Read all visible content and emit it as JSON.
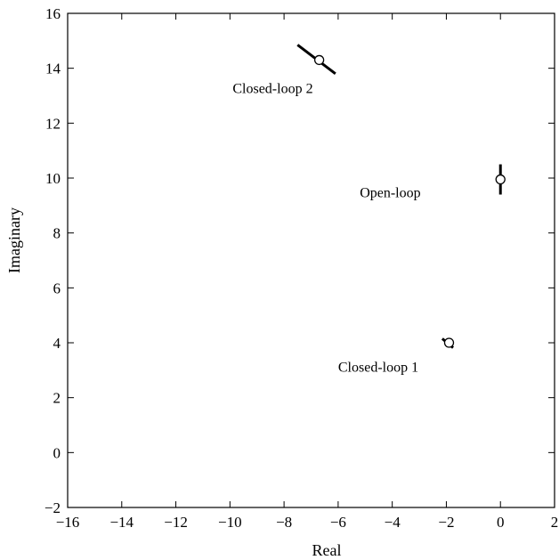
{
  "chart_data": {
    "type": "scatter",
    "title": "",
    "xlabel": "Real",
    "ylabel": "Imaginary",
    "xlim": [
      -16,
      2
    ],
    "ylim": [
      -2,
      16
    ],
    "xticks": [
      -16,
      -14,
      -12,
      -10,
      -8,
      -6,
      -4,
      -2,
      0,
      2
    ],
    "xtick_labels": [
      "−16",
      "−14",
      "−12",
      "−10",
      "−8",
      "−6",
      "−4",
      "−2",
      "0",
      "2"
    ],
    "yticks": [
      -2,
      0,
      2,
      4,
      6,
      8,
      10,
      12,
      14,
      16
    ],
    "ytick_labels": [
      "−2",
      "0",
      "2",
      "4",
      "6",
      "8",
      "10",
      "12",
      "14",
      "16"
    ],
    "grid": false,
    "points": [
      {
        "x": -6.7,
        "y": 14.3,
        "marker": "o"
      },
      {
        "x": 0.0,
        "y": 9.95,
        "marker": "o"
      },
      {
        "x": -1.9,
        "y": 4.0,
        "marker": "o"
      }
    ],
    "segments": [
      {
        "x": [
          -7.5,
          -6.1
        ],
        "y": [
          14.85,
          13.8
        ]
      },
      {
        "x": [
          0.0,
          0.0
        ],
        "y": [
          10.5,
          9.4
        ]
      },
      {
        "x": [
          -2.15,
          -1.75
        ],
        "y": [
          4.15,
          3.82
        ]
      }
    ],
    "annotations": [
      {
        "text": "Closed-loop 2",
        "x": -9.9,
        "y": 13.1
      },
      {
        "text": "Open-loop",
        "x": -5.2,
        "y": 9.3
      },
      {
        "text": "Closed-loop 1",
        "x": -6.0,
        "y": 2.95
      }
    ]
  }
}
